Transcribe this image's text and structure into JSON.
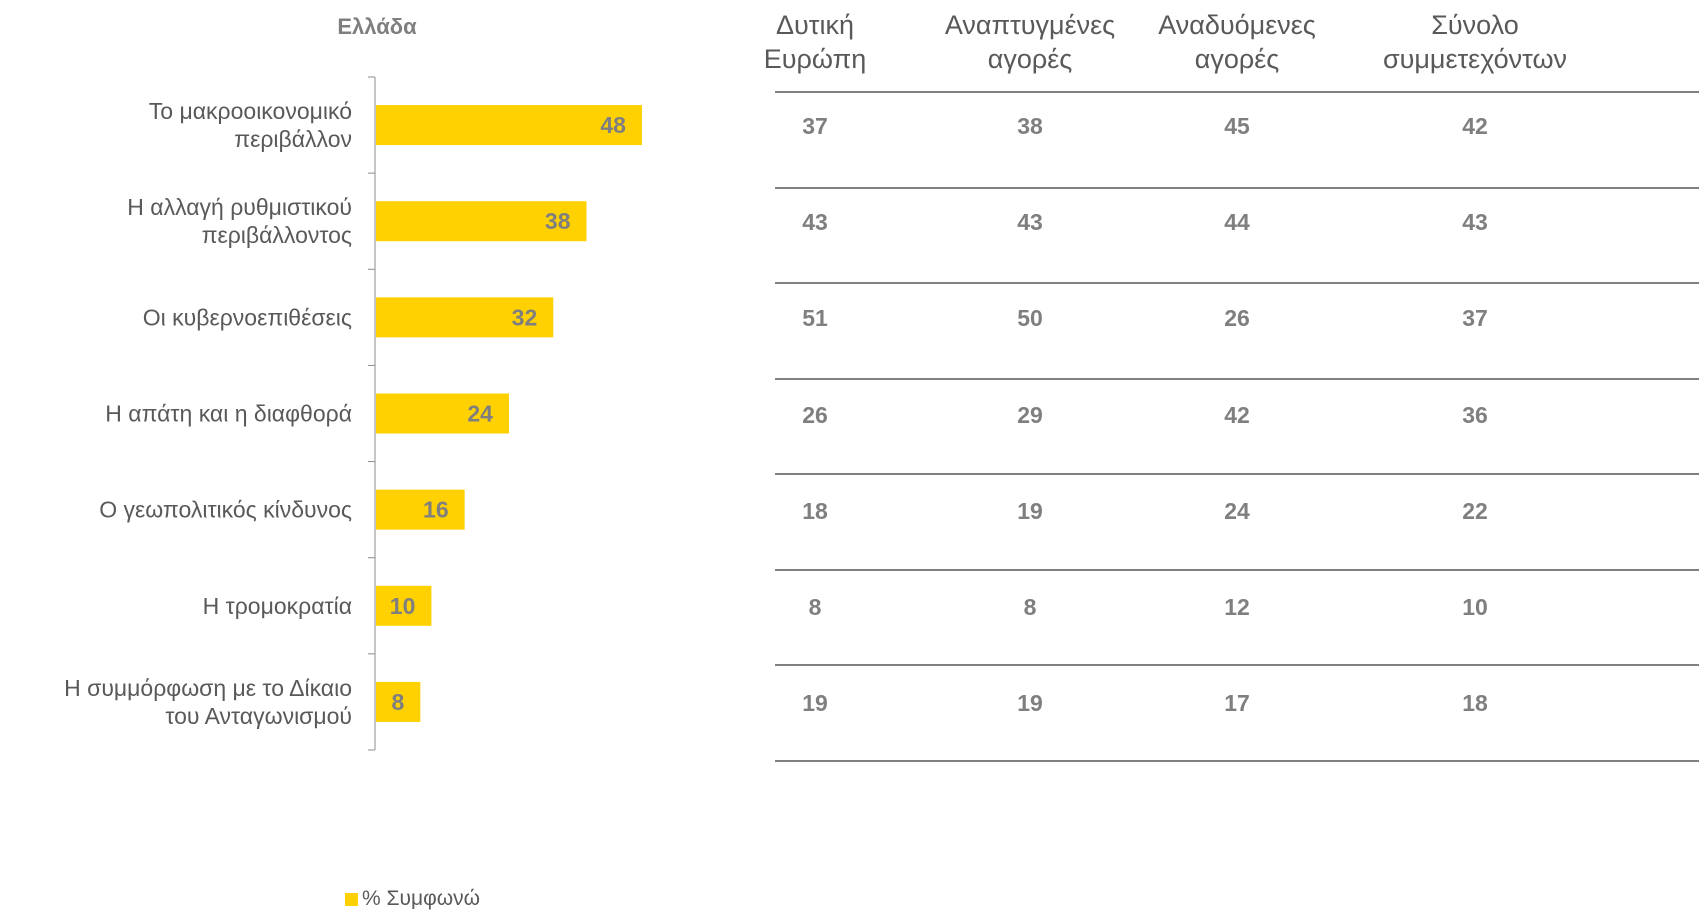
{
  "chart_data": {
    "type": "bar",
    "orientation": "horizontal",
    "title": "Ελλάδα",
    "categories": [
      "Το μακροοικονομικό περιβάλλον",
      "Η αλλαγή ρυθμιστικού περιβάλλοντος",
      "Οι κυβερνοεπιθέσεις",
      "Η απάτη και η διαφθορά",
      "Ο γεωπολιτικός κίνδυνος",
      "Η τρομοκρατία",
      "Η συμμόρφωση με το Δίκαιο του Ανταγωνισμού"
    ],
    "category_lines": [
      [
        "Το μακροοικονομικό",
        "περιβάλλον"
      ],
      [
        "Η αλλαγή ρυθμιστικού",
        "περιβάλλοντος"
      ],
      [
        "Οι κυβερνοεπιθέσεις"
      ],
      [
        "Η απάτη και η διαφθορά"
      ],
      [
        "Ο γεωπολιτικός κίνδυνος"
      ],
      [
        "Η τρομοκρατία"
      ],
      [
        "Η συμμόρφωση με το Δίκαιο",
        "του Ανταγωνισμού"
      ]
    ],
    "series": [
      {
        "name": "% Συμφωνώ",
        "values": [
          48,
          38,
          32,
          24,
          16,
          10,
          8
        ]
      }
    ],
    "xlim": [
      0,
      50
    ],
    "grid": false,
    "legend_position": "bottom-center",
    "bar_color": "#FFD100",
    "label_color": "#7F7F7F",
    "table": {
      "columns": [
        [
          "Δυτική",
          "Ευρώπη"
        ],
        [
          "Αναπτυγμένες",
          "αγορές"
        ],
        [
          "Αναδυόμενες",
          "αγορές"
        ],
        [
          "Σύνολο",
          "συμμετεχόντων"
        ]
      ],
      "rows": [
        [
          "37",
          "38",
          "45",
          "42"
        ],
        [
          "43",
          "43",
          "44",
          "43"
        ],
        [
          "51",
          "50",
          "26",
          "37"
        ],
        [
          "26",
          "29",
          "42",
          "36"
        ],
        [
          "18",
          "19",
          "24",
          "22"
        ],
        [
          "8",
          "8",
          "12",
          "10"
        ],
        [
          "19",
          "19",
          "17",
          "18"
        ]
      ]
    }
  }
}
